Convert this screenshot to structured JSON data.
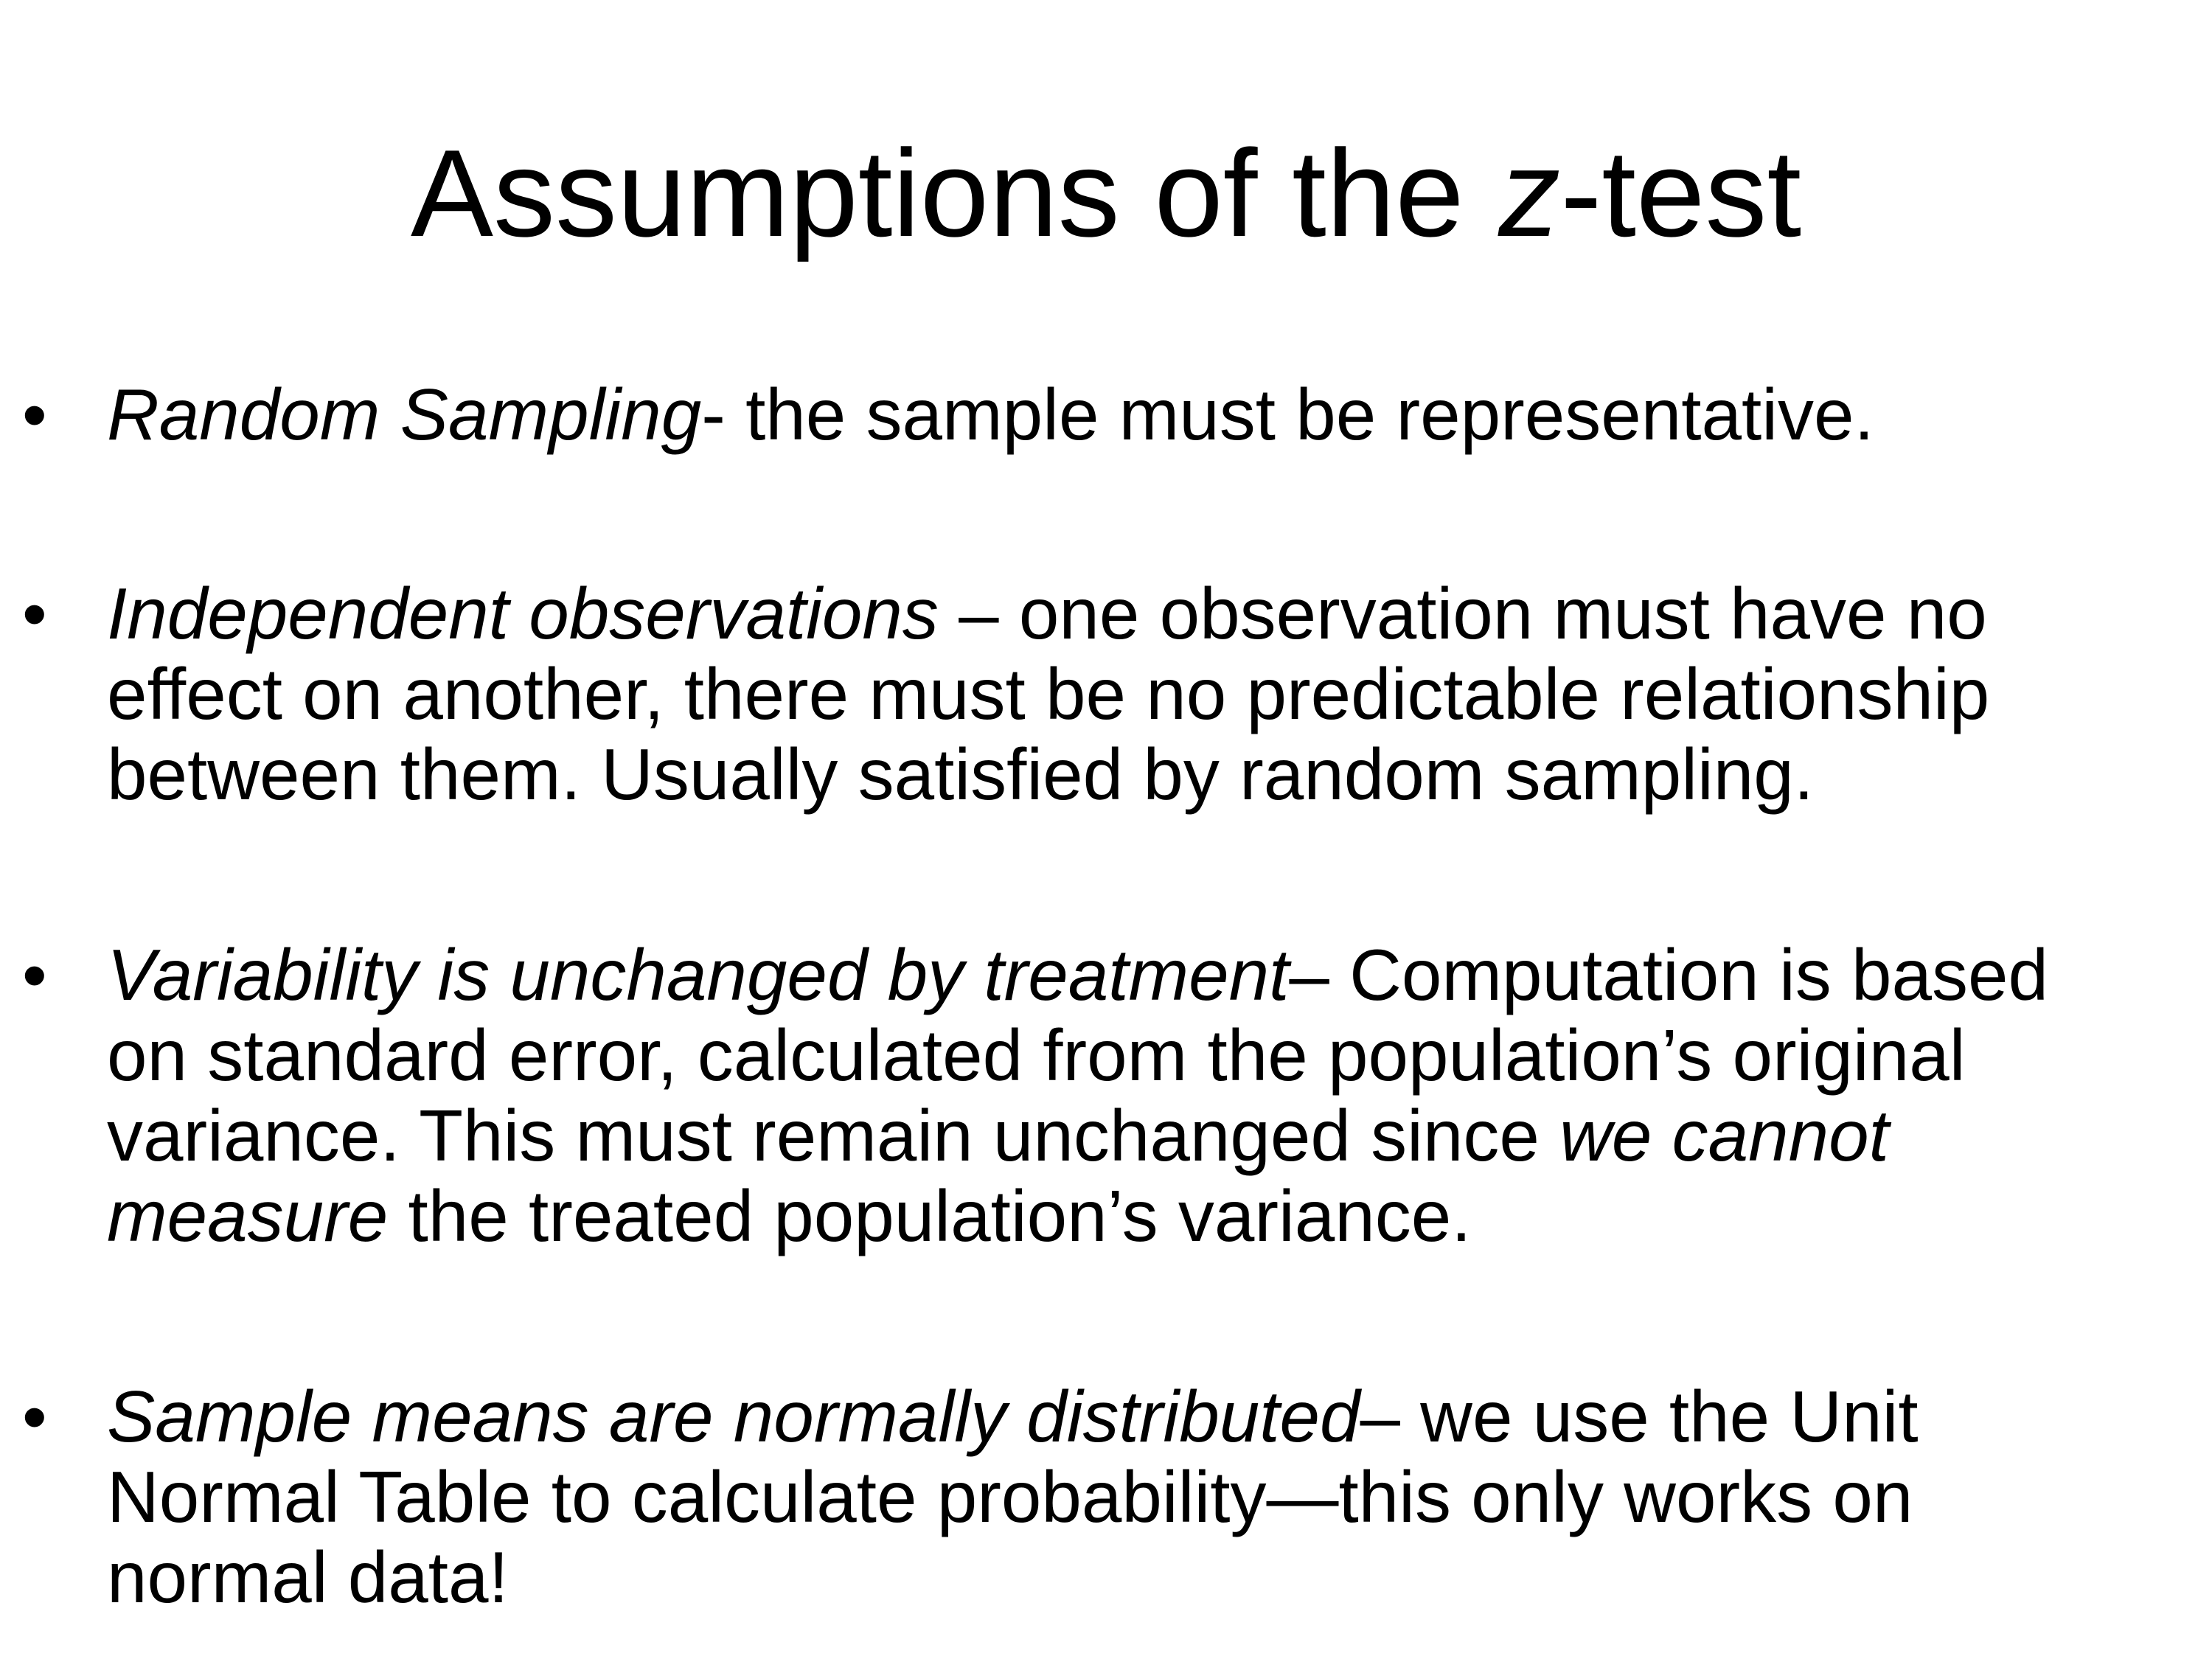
{
  "slide": {
    "title": {
      "prefix": "Assumptions of the ",
      "variable": "z",
      "suffix": "-test"
    },
    "bullets": [
      {
        "lines": [
          [
            {
              "text": "Random Sampling",
              "italic": true
            },
            {
              "text": "- the sample must be representative.",
              "italic": false
            }
          ]
        ]
      },
      {
        "lines": [
          [
            {
              "text": "Independent observations",
              "italic": true
            },
            {
              "text": " – one observation must have no",
              "italic": false
            }
          ],
          [
            {
              "text": "effect on another, there must be no predictable relationship",
              "italic": false
            }
          ],
          [
            {
              "text": "between them. Usually satisfied by random sampling.",
              "italic": false
            }
          ]
        ]
      },
      {
        "lines": [
          [
            {
              "text": "Variability is unchanged by treatment",
              "italic": true
            },
            {
              "text": "– Computation is based",
              "italic": false
            }
          ],
          [
            {
              "text": "on standard error, calculated from the population’s original",
              "italic": false
            }
          ],
          [
            {
              "text": "variance. This must remain unchanged since ",
              "italic": false
            },
            {
              "text": "we cannot",
              "italic": true
            }
          ],
          [
            {
              "text": "measure",
              "italic": true
            },
            {
              "text": " the treated population’s variance.",
              "italic": false
            }
          ]
        ]
      },
      {
        "lines": [
          [
            {
              "text": "Sample means are normally distributed",
              "italic": true
            },
            {
              "text": "– we use the Unit",
              "italic": false
            }
          ],
          [
            {
              "text": "Normal Table to calculate probability—this only works on",
              "italic": false
            }
          ],
          [
            {
              "text": "normal data!",
              "italic": false
            }
          ]
        ]
      }
    ]
  }
}
